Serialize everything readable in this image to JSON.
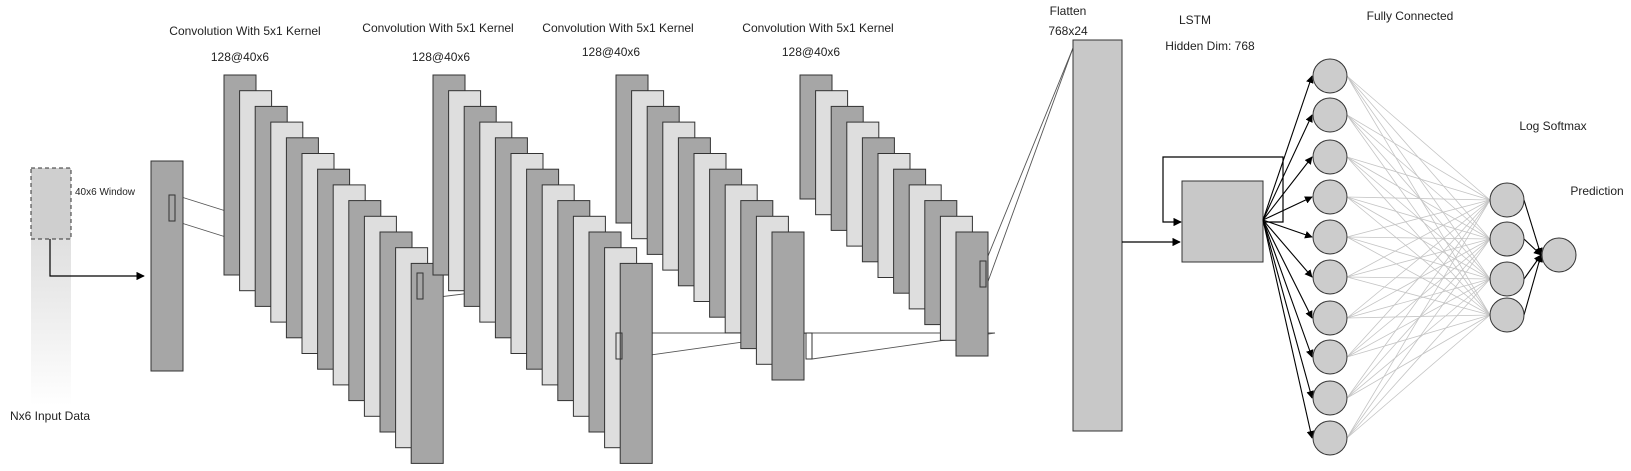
{
  "input": {
    "window_label": "40x6 Window",
    "data_label": "Nx6 Input Data"
  },
  "conv_layers": [
    {
      "title": "Convolution With 5x1 Kernel",
      "shape": "128@40x6"
    },
    {
      "title": "Convolution With 5x1 Kernel",
      "shape": "128@40x6"
    },
    {
      "title": "Convolution With 5x1 Kernel",
      "shape": "128@40x6"
    },
    {
      "title": "Convolution With 5x1 Kernel",
      "shape": "128@40x6"
    }
  ],
  "flatten": {
    "title": "Flatten",
    "shape": "768x24"
  },
  "lstm": {
    "title": "LSTM",
    "hidden": "Hidden Dim: 768"
  },
  "fc": {
    "title": "Fully Connected",
    "hidden_nodes": 10
  },
  "softmax": {
    "title": "Log Softmax",
    "nodes": 4
  },
  "prediction": {
    "title": "Prediction"
  },
  "colors": {
    "dark_map": "#a6a6a6",
    "light_map": "#dedede",
    "flatten_fill": "#c8c8c8",
    "node_fill": "#cccccc",
    "stroke": "#333333",
    "edge_light": "#c4c4c4"
  }
}
